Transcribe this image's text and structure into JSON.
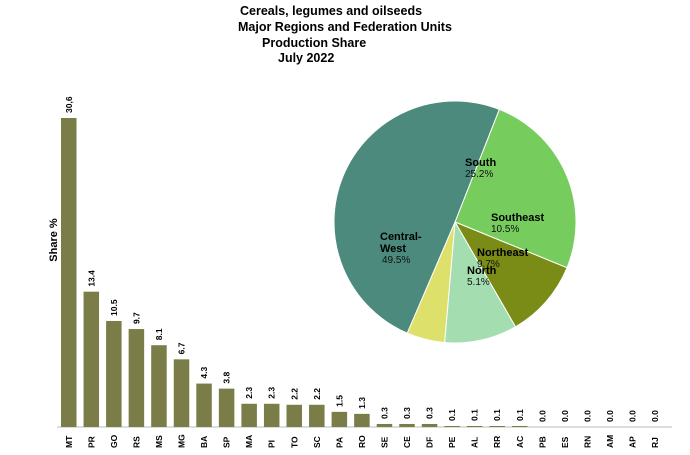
{
  "chart_data": [
    {
      "type": "bar",
      "title": [
        "Cereals, legumes and oilseeds",
        "Major Regions and Federation Units",
        "Production Share",
        "July 2022"
      ],
      "ylabel": "Share %",
      "xlabel": "",
      "ylim": [
        0,
        35
      ],
      "grid": false,
      "color": "#7a7d48",
      "categories": [
        "MT",
        "PR",
        "GO",
        "RS",
        "MS",
        "MG",
        "BA",
        "SP",
        "MA",
        "PI",
        "TO",
        "SC",
        "PA",
        "RO",
        "SE",
        "CE",
        "DF",
        "PE",
        "AL",
        "RR",
        "AC",
        "PB",
        "ES",
        "RN",
        "AM",
        "AP",
        "RJ"
      ],
      "values": [
        30.6,
        13.4,
        10.5,
        9.7,
        8.1,
        6.7,
        4.3,
        3.8,
        2.3,
        2.3,
        2.2,
        2.2,
        1.5,
        1.3,
        0.3,
        0.3,
        0.3,
        0.1,
        0.1,
        0.1,
        0.1,
        0.0,
        0.0,
        0.0,
        0.0,
        0.0,
        0.0
      ],
      "value_labels": [
        "30,6",
        "13.4",
        "10.5",
        "9.7",
        "8.1",
        "6.7",
        "4.3",
        "3.8",
        "2.3",
        "2.3",
        "2.2",
        "2.2",
        "1.5",
        "1.3",
        "0.3",
        "0.3",
        "0.3",
        "0.1",
        "0.1",
        "0.1",
        "0.1",
        "0.0",
        "0.0",
        "0.0",
        "0.0",
        "0.0",
        "0.0"
      ]
    },
    {
      "type": "pie",
      "slices": [
        {
          "name": "South",
          "label": "South",
          "pct_label": "25.2%",
          "value": 25.2,
          "color": "#77cc5e"
        },
        {
          "name": "Southeast",
          "label": "Southeast",
          "pct_label": "10.5%",
          "value": 10.5,
          "color": "#7a8b16"
        },
        {
          "name": "Northeast",
          "label": "Northeast",
          "pct_label": "9.7%",
          "value": 9.7,
          "color": "#a3ddb0"
        },
        {
          "name": "North",
          "label": "North",
          "pct_label": "5.1%",
          "value": 5.1,
          "color": "#dde06a"
        },
        {
          "name": "Central-West",
          "label": "Central-\nWest",
          "pct_label": "49.5%",
          "value": 49.5,
          "color": "#4b8a7c"
        }
      ]
    }
  ]
}
